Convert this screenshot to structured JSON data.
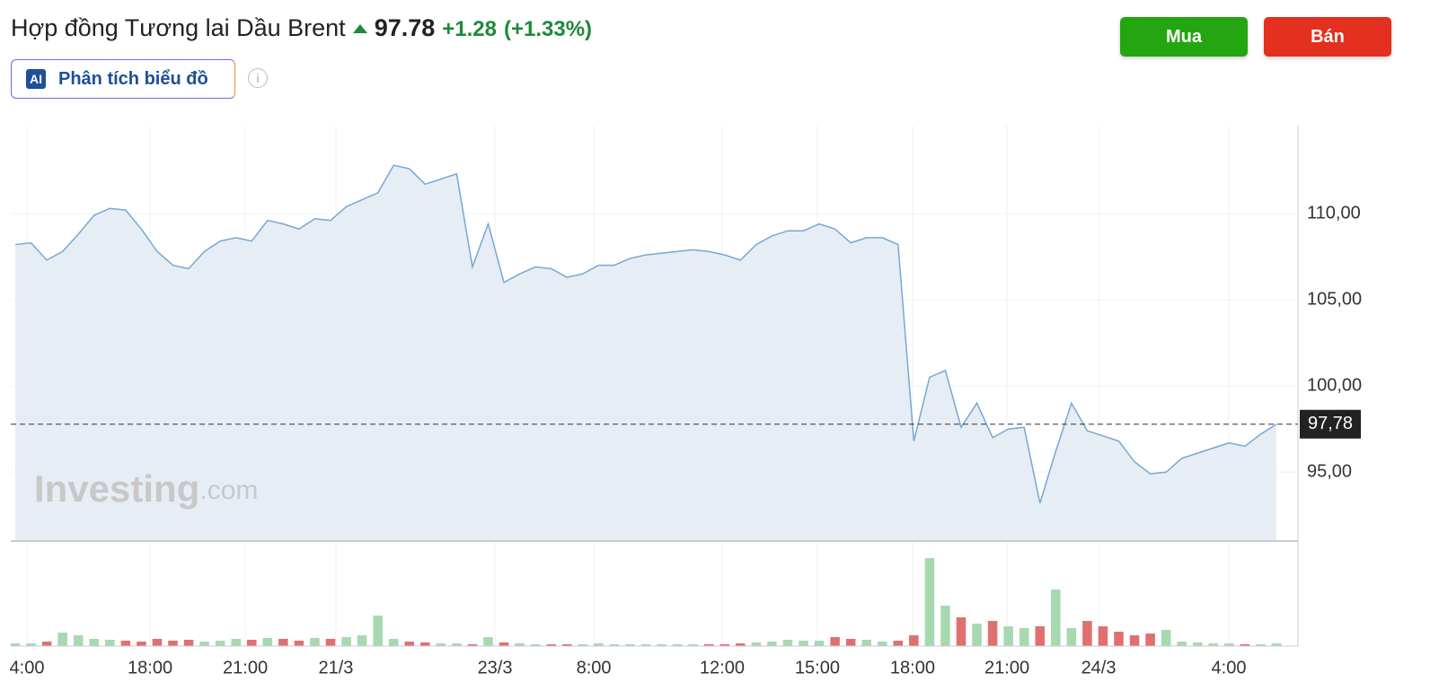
{
  "header": {
    "title": "Hợp đồng Tương lai Dầu Brent",
    "price": "97.78",
    "change": "+1.28",
    "change_pct": "(+1.33%)",
    "ai_badge": "AI",
    "ai_button": "Phân tích biểu đồ",
    "buy": "Mua",
    "sell": "Bán",
    "watermark": "Investing",
    "watermark_suffix": ".com"
  },
  "chart_data": {
    "type": "area",
    "color": "#76a7d6",
    "fill": "#e7edf4",
    "values": [
      108.2,
      108.3,
      107.3,
      107.8,
      108.8,
      109.9,
      110.3,
      110.2,
      109.1,
      107.8,
      107.0,
      106.8,
      107.8,
      108.4,
      108.6,
      108.4,
      109.6,
      109.4,
      109.1,
      109.7,
      109.6,
      110.4,
      110.8,
      111.2,
      112.8,
      112.6,
      111.7,
      112.0,
      112.3,
      106.9,
      109.4,
      106.0,
      106.5,
      106.9,
      106.8,
      106.3,
      106.5,
      107.0,
      107.0,
      107.4,
      107.6,
      107.7,
      107.8,
      107.9,
      107.8,
      107.6,
      107.3,
      108.2,
      108.7,
      109.0,
      109.0,
      109.4,
      109.1,
      108.3,
      108.6,
      108.6,
      108.2,
      96.8,
      100.5,
      100.9,
      97.6,
      99.0,
      97.0,
      97.5,
      97.6,
      93.2,
      96.2,
      99.0,
      97.4,
      97.1,
      96.8,
      95.6,
      94.9,
      95.0,
      95.8,
      96.1,
      96.4,
      96.7,
      96.5,
      97.2,
      97.78
    ],
    "ylim": [
      91,
      115.1
    ],
    "yticks": [
      {
        "value": 95,
        "label": "95,00"
      },
      {
        "value": 100,
        "label": "100,00"
      },
      {
        "value": 105,
        "label": "105,00"
      },
      {
        "value": 110,
        "label": "110,00"
      }
    ],
    "xticks": [
      {
        "value": 0.74,
        "label": "4:00"
      },
      {
        "value": 8.55,
        "label": "18:00"
      },
      {
        "value": 14.59,
        "label": "21:00"
      },
      {
        "value": 20.34,
        "label": "21/3"
      },
      {
        "value": 30.43,
        "label": "23/3"
      },
      {
        "value": 36.7,
        "label": "8:00"
      },
      {
        "value": 44.84,
        "label": "12:00"
      },
      {
        "value": 50.88,
        "label": "15:00"
      },
      {
        "value": 56.92,
        "label": "18:00"
      },
      {
        "value": 62.91,
        "label": "21:00"
      },
      {
        "value": 68.72,
        "label": "24/3"
      },
      {
        "value": 76.98,
        "label": "4:00"
      }
    ],
    "last_price": {
      "value": 97.78,
      "label": "97,78"
    },
    "grid": true,
    "volume": {
      "up_color": "#a8d8b0",
      "down_color": "#e07070",
      "ylim": [
        0,
        100
      ],
      "values": [
        3,
        3,
        5,
        15,
        12,
        8,
        7,
        6,
        5,
        8,
        6,
        7,
        5,
        6,
        8,
        7,
        9,
        8,
        6,
        9,
        8,
        10,
        12,
        34,
        8,
        5,
        4,
        3,
        3,
        2,
        10,
        4,
        3,
        2,
        2,
        2,
        2,
        3,
        2,
        2,
        2,
        2,
        2,
        2,
        2,
        2,
        3,
        4,
        5,
        7,
        6,
        6,
        10,
        8,
        7,
        5,
        6,
        12,
        98,
        45,
        32,
        25,
        28,
        22,
        20,
        22,
        63,
        20,
        28,
        22,
        16,
        12,
        14,
        18,
        5,
        4,
        3,
        3,
        2,
        2,
        3
      ]
    }
  }
}
